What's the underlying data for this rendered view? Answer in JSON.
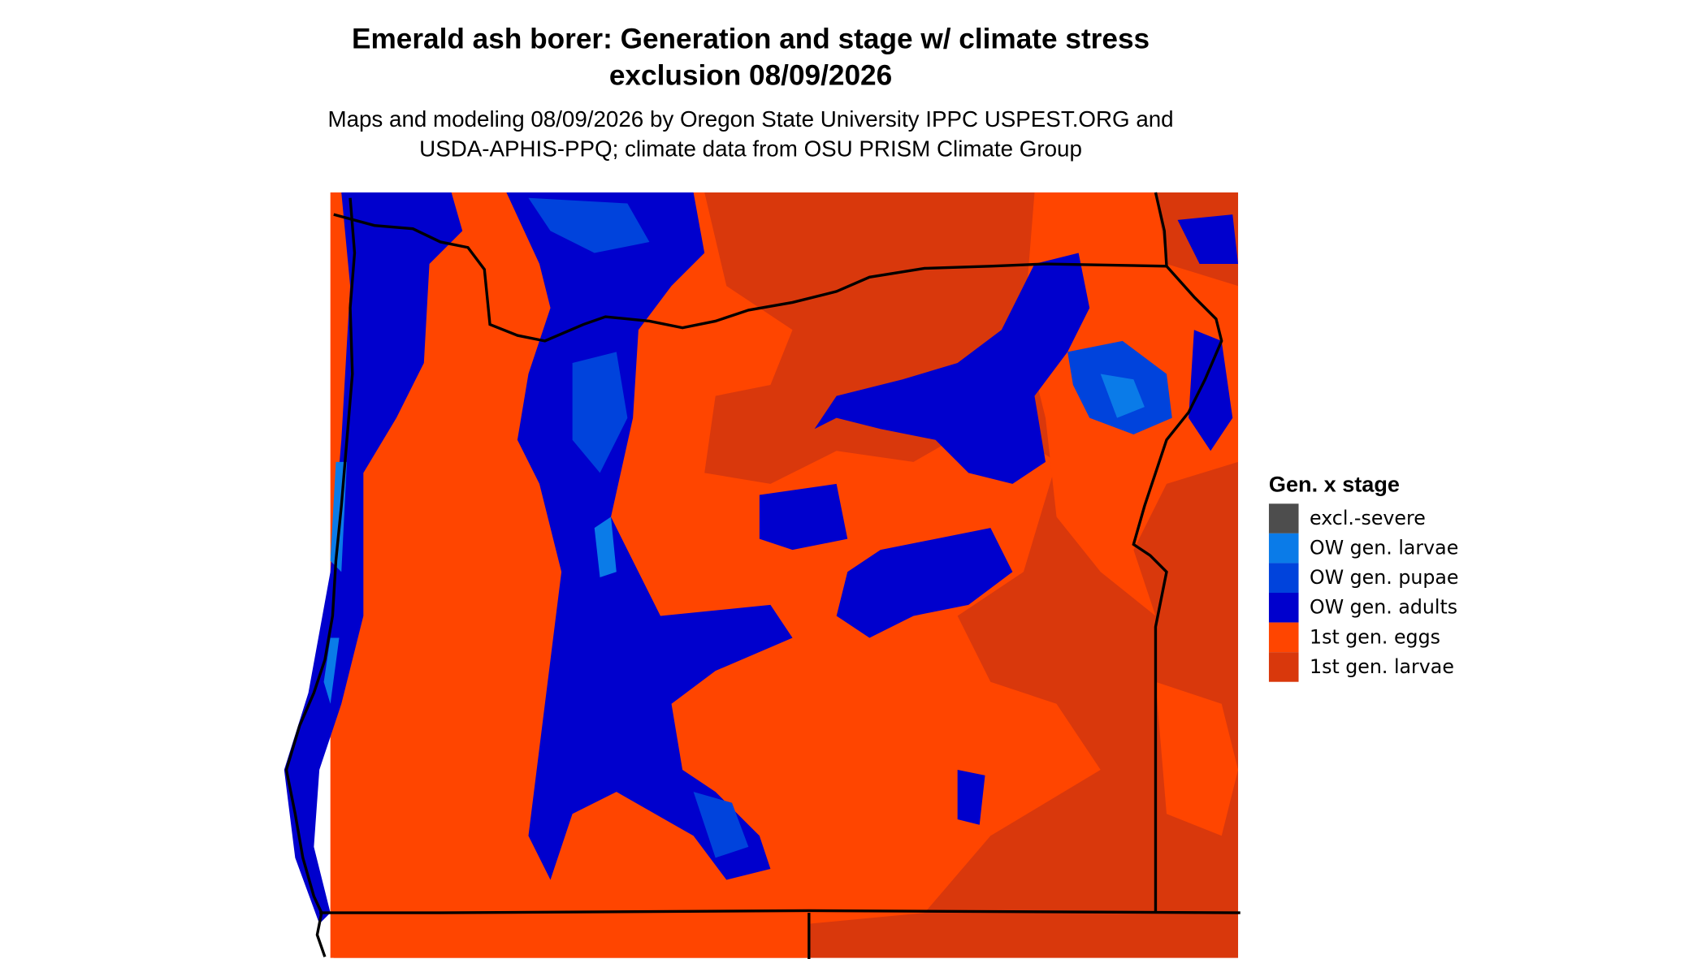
{
  "header": {
    "title": [
      "Emerald ash borer: Generation and stage w/ climate stress",
      "exclusion 08/09/2026"
    ],
    "subtitle": [
      "Maps and modeling 08/09/2026 by Oregon State University IPPC USPEST.ORG and",
      "USDA-APHIS-PPQ; climate data from OSU PRISM Climate Group"
    ]
  },
  "legend": {
    "title": "Gen. x stage",
    "items": [
      {
        "label": "excl.-severe",
        "color": "#4d4d4d"
      },
      {
        "label": "OW gen. larvae",
        "color": "#0a7be8"
      },
      {
        "label": "OW gen. pupae",
        "color": "#0043dc"
      },
      {
        "label": "OW gen. adults",
        "color": "#0000cd"
      },
      {
        "label": "1st gen. eggs",
        "color": "#ff4500"
      },
      {
        "label": "1st gen. larvae",
        "color": "#d9380c"
      }
    ]
  }
}
